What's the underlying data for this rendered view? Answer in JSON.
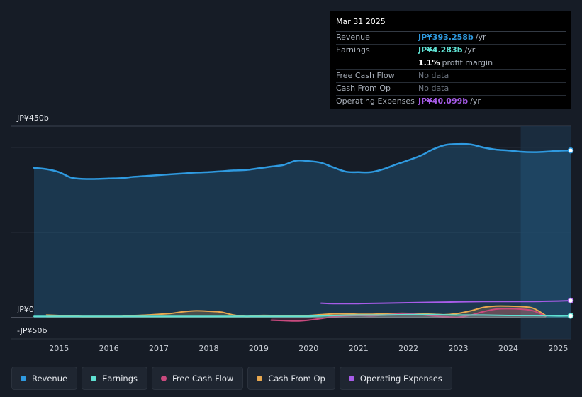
{
  "tooltip": {
    "date": "Mar 31 2025",
    "rows": [
      {
        "label": "Revenue",
        "value": "JP¥393.258b",
        "unit": "/yr",
        "color": "#2f9ae0"
      },
      {
        "label": "Earnings",
        "value": "JP¥4.283b",
        "unit": "/yr",
        "color": "#5fe0d2"
      },
      {
        "label": "",
        "value": "1.1%",
        "unit": "profit margin",
        "color": "#ffffff"
      },
      {
        "label": "Free Cash Flow",
        "value": "No data",
        "unit": "",
        "color": "#6d7580"
      },
      {
        "label": "Cash From Op",
        "value": "No data",
        "unit": "",
        "color": "#6d7580"
      },
      {
        "label": "Operating Expenses",
        "value": "JP¥40.099b",
        "unit": "/yr",
        "color": "#a75ce8"
      }
    ]
  },
  "legend": [
    {
      "label": "Revenue",
      "color": "#2f9ae0"
    },
    {
      "label": "Earnings",
      "color": "#5fe0d2"
    },
    {
      "label": "Free Cash Flow",
      "color": "#c94a7e"
    },
    {
      "label": "Cash From Op",
      "color": "#e8a850"
    },
    {
      "label": "Operating Expenses",
      "color": "#a75ce8"
    }
  ],
  "chart_data": {
    "type": "line",
    "y_axis_labels": {
      "top": "JP¥450b",
      "zero": "JP¥0",
      "bottom": "-JP¥50b"
    },
    "ylim": [
      -50,
      450
    ],
    "xlim": [
      2014.5,
      2025.25
    ],
    "x_ticks": [
      "2015",
      "2016",
      "2017",
      "2018",
      "2019",
      "2020",
      "2021",
      "2022",
      "2023",
      "2024",
      "2025"
    ],
    "x_tick_values": [
      2015,
      2016,
      2017,
      2018,
      2019,
      2020,
      2021,
      2022,
      2023,
      2024,
      2025
    ],
    "highlight_from": 2024.25,
    "series": [
      {
        "name": "Revenue",
        "color": "#2f9ae0",
        "x": [
          2014.5,
          2014.75,
          2015.0,
          2015.25,
          2015.5,
          2015.75,
          2016.0,
          2016.25,
          2016.5,
          2016.75,
          2017.0,
          2017.25,
          2017.5,
          2017.75,
          2018.0,
          2018.25,
          2018.5,
          2018.75,
          2019.0,
          2019.25,
          2019.5,
          2019.75,
          2020.0,
          2020.25,
          2020.5,
          2020.75,
          2021.0,
          2021.25,
          2021.5,
          2021.75,
          2022.0,
          2022.25,
          2022.5,
          2022.75,
          2023.0,
          2023.25,
          2023.5,
          2023.75,
          2024.0,
          2024.25,
          2024.5,
          2024.75,
          2025.0,
          2025.25
        ],
        "y": [
          352,
          349,
          342,
          329,
          326,
          326,
          327,
          328,
          331,
          333,
          335,
          337,
          339,
          341,
          342,
          344,
          346,
          347,
          351,
          355,
          359,
          369,
          368,
          364,
          353,
          343,
          342,
          342,
          349,
          360,
          370,
          381,
          396,
          406,
          408,
          407,
          400,
          395,
          393,
          390,
          389,
          390,
          392,
          393
        ]
      },
      {
        "name": "Earnings",
        "color": "#5fe0d2",
        "x": [
          2014.5,
          2015.0,
          2015.5,
          2016.0,
          2016.5,
          2017.0,
          2017.5,
          2018.0,
          2018.5,
          2019.0,
          2019.5,
          2020.0,
          2020.5,
          2021.0,
          2021.5,
          2022.0,
          2022.5,
          2023.0,
          2023.5,
          2024.0,
          2024.5,
          2025.0,
          2025.25
        ],
        "y": [
          3,
          3,
          3,
          3,
          3,
          3,
          3,
          3,
          3,
          3,
          3,
          3,
          5,
          6,
          6,
          7,
          7,
          6,
          6,
          5,
          5,
          4,
          4.3
        ]
      },
      {
        "name": "Free Cash Flow",
        "color": "#c94a7e",
        "x": [
          2019.25,
          2019.5,
          2019.75,
          2020.0,
          2020.25,
          2020.5,
          2020.75,
          2021.0,
          2021.25,
          2021.5,
          2021.75,
          2022.0,
          2022.25,
          2022.5,
          2022.75,
          2023.0,
          2023.25,
          2023.5,
          2023.75,
          2024.0,
          2024.25,
          2024.5,
          2024.75
        ],
        "y": [
          -6,
          -7,
          -8,
          -6,
          -2,
          2,
          4,
          5,
          4,
          6,
          8,
          9,
          7,
          4,
          2,
          1,
          6,
          14,
          20,
          21,
          20,
          16,
          3
        ]
      },
      {
        "name": "Cash From Op",
        "color": "#e8a850",
        "x": [
          2014.75,
          2015.0,
          2015.25,
          2015.5,
          2015.75,
          2016.0,
          2016.25,
          2016.5,
          2016.75,
          2017.0,
          2017.25,
          2017.5,
          2017.75,
          2018.0,
          2018.25,
          2018.5,
          2018.75,
          2019.0,
          2019.25,
          2019.5,
          2019.75,
          2020.0,
          2020.25,
          2020.5,
          2020.75,
          2021.0,
          2021.25,
          2021.5,
          2021.75,
          2022.0,
          2022.25,
          2022.5,
          2022.75,
          2023.0,
          2023.25,
          2023.5,
          2023.75,
          2024.0,
          2024.25,
          2024.5,
          2024.75
        ],
        "y": [
          6,
          5,
          4,
          3,
          3,
          3,
          3,
          5,
          6,
          8,
          10,
          14,
          16,
          15,
          13,
          6,
          3,
          5,
          5,
          4,
          4,
          5,
          7,
          9,
          9,
          8,
          8,
          9,
          10,
          10,
          9,
          8,
          7,
          10,
          16,
          24,
          27,
          27,
          26,
          22,
          5
        ]
      },
      {
        "name": "Operating Expenses",
        "color": "#a75ce8",
        "x": [
          2020.25,
          2020.5,
          2021.0,
          2021.5,
          2022.0,
          2022.5,
          2023.0,
          2023.5,
          2024.0,
          2024.5,
          2025.0,
          2025.25
        ],
        "y": [
          34,
          33,
          33,
          34,
          35,
          36,
          37,
          38,
          38,
          38,
          39,
          40
        ]
      }
    ]
  }
}
